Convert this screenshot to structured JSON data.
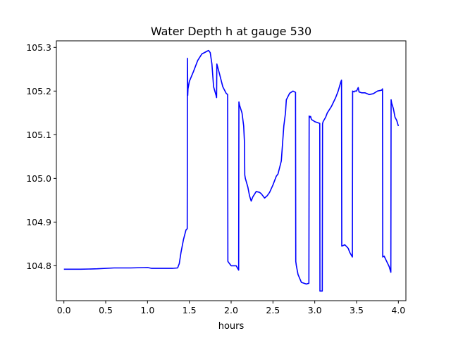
{
  "chart_data": {
    "type": "line",
    "title": "Water Depth h at gauge 530",
    "xlabel": "hours",
    "ylabel": "",
    "xlim": [
      -0.09,
      4.09
    ],
    "ylim": [
      104.72,
      105.315
    ],
    "xticks": [
      0.0,
      0.5,
      1.0,
      1.5,
      2.0,
      2.5,
      3.0,
      3.5,
      4.0
    ],
    "xtick_labels": [
      "0.0",
      "0.5",
      "1.0",
      "1.5",
      "2.0",
      "2.5",
      "3.0",
      "3.5",
      "4.0"
    ],
    "yticks": [
      104.8,
      104.9,
      105.0,
      105.1,
      105.2,
      105.3
    ],
    "ytick_labels": [
      "104.8",
      "104.9",
      "105.0",
      "105.1",
      "105.2",
      "105.3"
    ],
    "grid": false,
    "legend": "none",
    "series": [
      {
        "color": "#0000ff",
        "x": [
          0.0,
          0.2,
          0.4,
          0.6,
          0.8,
          1.0,
          1.05,
          1.2,
          1.3,
          1.36,
          1.38,
          1.4,
          1.43,
          1.46,
          1.475,
          1.478,
          1.481,
          1.484,
          1.5,
          1.55,
          1.6,
          1.65,
          1.7,
          1.73,
          1.75,
          1.77,
          1.79,
          1.82,
          1.826,
          1.829,
          1.86,
          1.9,
          1.94,
          1.958,
          1.961,
          1.98,
          2.0,
          2.06,
          2.09,
          2.093,
          2.1,
          2.13,
          2.15,
          2.16,
          2.163,
          2.17,
          2.2,
          2.22,
          2.24,
          2.26,
          2.3,
          2.34,
          2.36,
          2.4,
          2.43,
          2.46,
          2.5,
          2.52,
          2.54,
          2.56,
          2.6,
          2.63,
          2.65,
          2.66,
          2.7,
          2.74,
          2.76,
          2.77,
          2.773,
          2.78,
          2.8,
          2.84,
          2.9,
          2.93,
          2.933,
          2.94,
          2.95,
          2.96,
          3.0,
          3.03,
          3.06,
          3.062,
          3.09,
          3.093,
          3.1,
          3.13,
          3.15,
          3.2,
          3.25,
          3.28,
          3.31,
          3.32,
          3.323,
          3.36,
          3.4,
          3.42,
          3.45,
          3.453,
          3.47,
          3.48,
          3.5,
          3.52,
          3.53,
          3.56,
          3.6,
          3.65,
          3.7,
          3.75,
          3.8,
          3.81,
          3.813,
          3.83,
          3.86,
          3.89,
          3.91,
          3.913,
          3.92,
          3.94,
          3.96,
          3.98,
          4.0
        ],
        "y": [
          104.792,
          104.792,
          104.793,
          104.795,
          104.795,
          104.796,
          104.794,
          104.794,
          104.794,
          104.795,
          104.805,
          104.83,
          104.86,
          104.882,
          104.885,
          105.275,
          105.19,
          105.205,
          105.222,
          105.245,
          105.27,
          105.285,
          105.29,
          105.293,
          105.288,
          105.262,
          105.21,
          105.19,
          105.185,
          105.262,
          105.24,
          105.21,
          105.195,
          105.192,
          104.81,
          104.805,
          104.8,
          104.8,
          104.79,
          105.175,
          105.168,
          105.15,
          105.12,
          105.08,
          105.008,
          105.0,
          104.98,
          104.96,
          104.948,
          104.958,
          104.97,
          104.968,
          104.965,
          104.955,
          104.96,
          104.968,
          104.985,
          104.995,
          105.005,
          105.01,
          105.04,
          105.12,
          105.15,
          105.18,
          105.195,
          105.2,
          105.198,
          105.197,
          104.81,
          104.8,
          104.78,
          104.762,
          104.758,
          104.76,
          105.143,
          105.14,
          105.142,
          105.135,
          105.13,
          105.128,
          105.126,
          104.742,
          104.742,
          105.125,
          105.13,
          105.14,
          105.15,
          105.165,
          105.185,
          105.2,
          105.22,
          105.225,
          104.845,
          104.848,
          104.84,
          104.83,
          104.82,
          105.2,
          105.198,
          105.2,
          105.2,
          105.208,
          105.198,
          105.196,
          105.196,
          105.192,
          105.194,
          105.2,
          105.202,
          105.205,
          104.82,
          104.822,
          104.81,
          104.798,
          104.785,
          105.18,
          105.172,
          105.16,
          105.14,
          105.133,
          105.12
        ]
      }
    ]
  }
}
